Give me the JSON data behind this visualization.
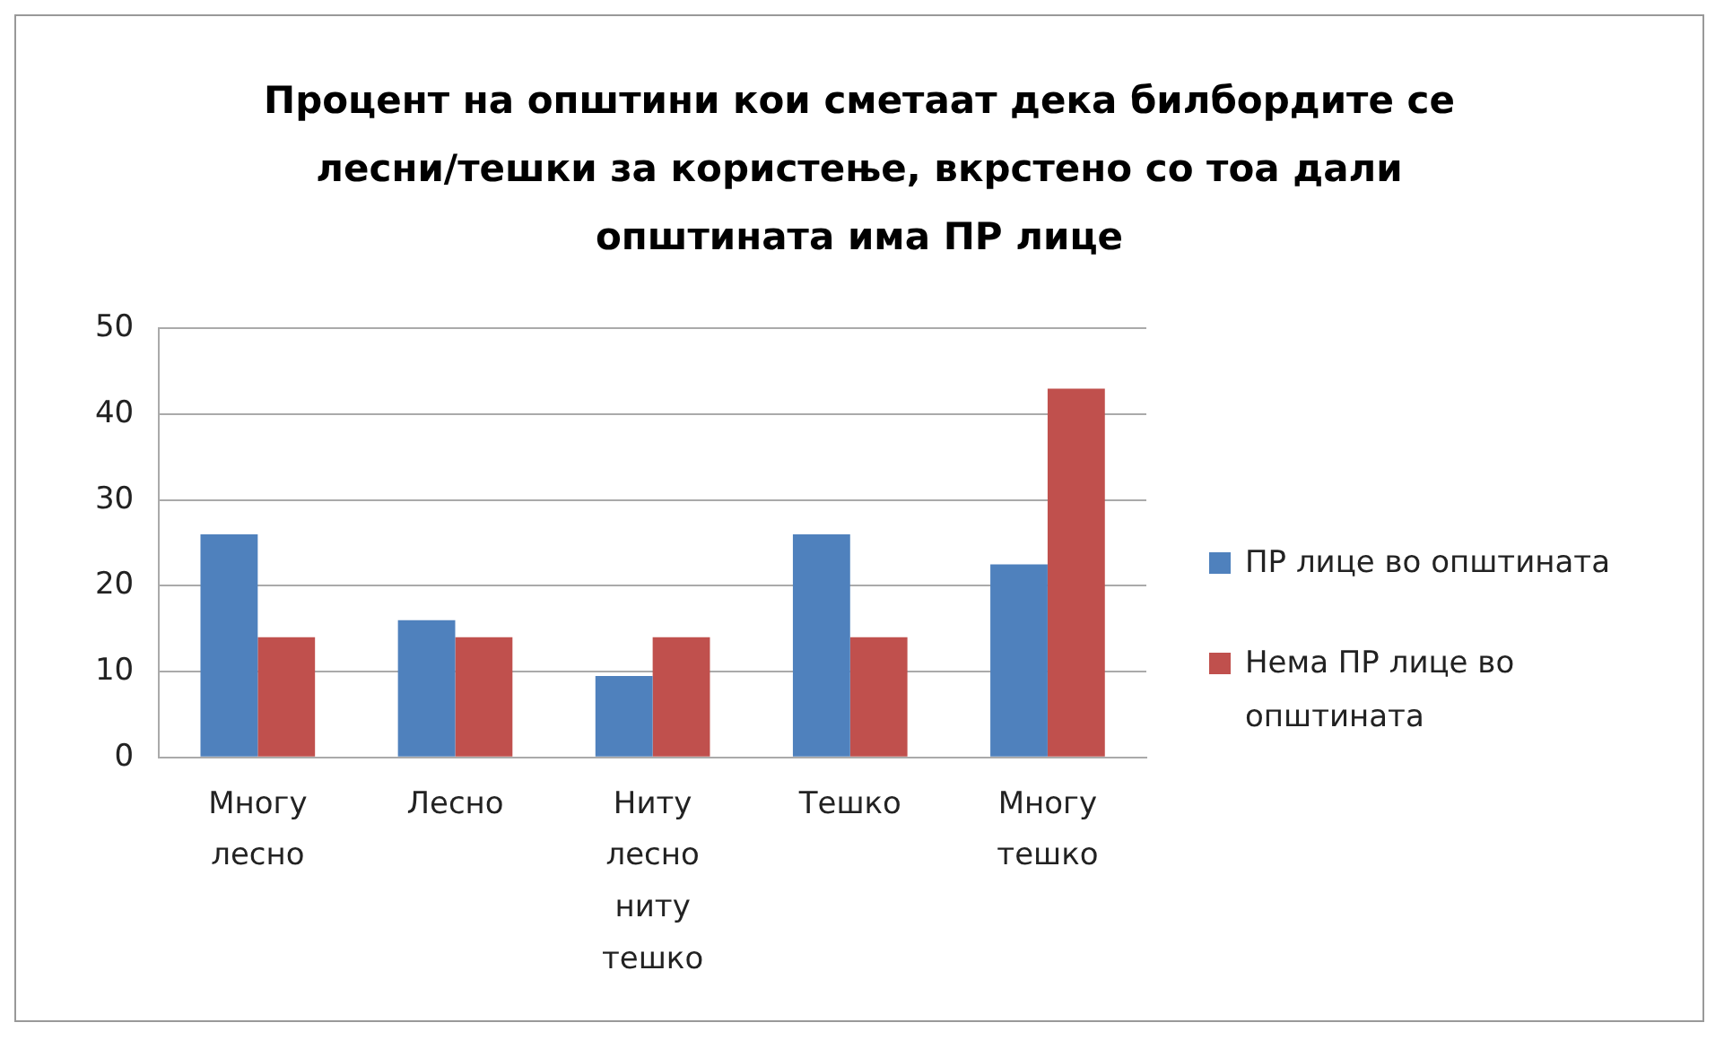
{
  "chart_data": {
    "type": "bar",
    "title": "Процент на општини кои сметаат дека билбордите се лесни/тешки за користење, вкрстено со тоа дали општината има ПР лице",
    "categories": [
      "Многу лесно",
      "Лесно",
      "Ниту лесно ниту тешко",
      "Тешко",
      "Многу тешко"
    ],
    "series": [
      {
        "name": "ПР лице во општината",
        "color": "#4f81bd",
        "values": [
          26,
          16,
          9.5,
          26,
          22.5
        ]
      },
      {
        "name": "Нема ПР лице во општината",
        "color": "#c0504d",
        "values": [
          14,
          14,
          14,
          14,
          43
        ]
      }
    ],
    "ylim": [
      0,
      50
    ],
    "yticks": [
      0,
      10,
      20,
      30,
      40,
      50
    ],
    "grid": "y",
    "legend": "right"
  }
}
